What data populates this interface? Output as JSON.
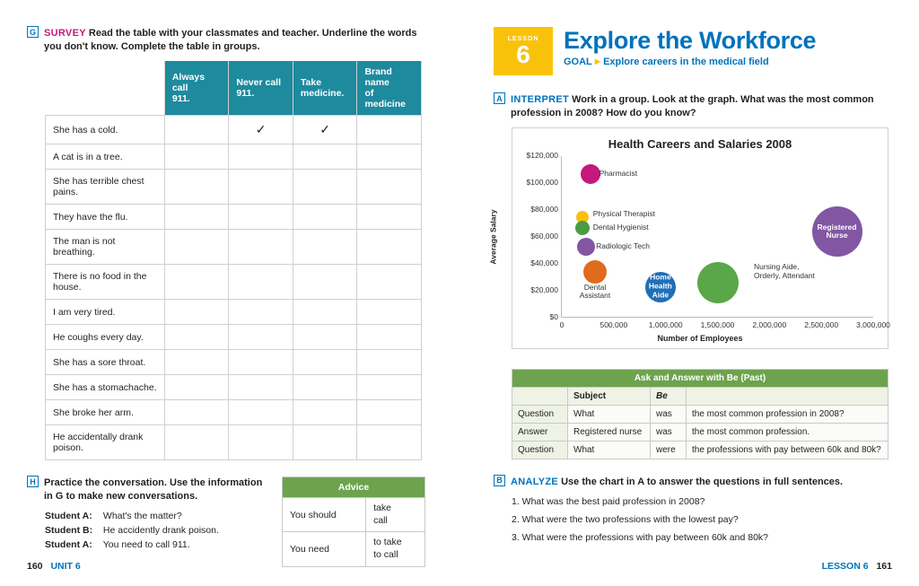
{
  "left": {
    "G": {
      "lead": "SURVEY",
      "text1": "Read the table with your classmates and teacher. Underline the words",
      "text2": "you don't know. Complete the table in groups.",
      "cols": [
        "",
        "Always call 911.",
        "Never call 911.",
        "Take medicine.",
        "Brand name of medicine"
      ],
      "rows": [
        {
          "t": "She has a cold.",
          "v": [
            "",
            "✓",
            "✓",
            ""
          ]
        },
        {
          "t": "A cat is in a tree.",
          "v": [
            "",
            "",
            "",
            ""
          ]
        },
        {
          "t": "She has terrible chest pains.",
          "v": [
            "",
            "",
            "",
            ""
          ]
        },
        {
          "t": "They have the flu.",
          "v": [
            "",
            "",
            "",
            ""
          ]
        },
        {
          "t": "The man is not breathing.",
          "v": [
            "",
            "",
            "",
            ""
          ]
        },
        {
          "t": "There is no food in the house.",
          "v": [
            "",
            "",
            "",
            ""
          ]
        },
        {
          "t": "I am very tired.",
          "v": [
            "",
            "",
            "",
            ""
          ]
        },
        {
          "t": "He coughs every day.",
          "v": [
            "",
            "",
            "",
            ""
          ]
        },
        {
          "t": "She has a sore throat.",
          "v": [
            "",
            "",
            "",
            ""
          ]
        },
        {
          "t": "She has a stomachache.",
          "v": [
            "",
            "",
            "",
            ""
          ]
        },
        {
          "t": "She broke her arm.",
          "v": [
            "",
            "",
            "",
            ""
          ]
        },
        {
          "t": "He accidentally drank poison.",
          "v": [
            "",
            "",
            "",
            ""
          ]
        }
      ]
    },
    "H": {
      "text1": "Practice the conversation. Use the information",
      "text2": "in G to make new conversations.",
      "conv": [
        {
          "who": "Student A:",
          "line": "What's the matter?"
        },
        {
          "who": "Student B:",
          "line": "He accidently drank poison."
        },
        {
          "who": "Student A:",
          "line": "You need to call 911."
        }
      ],
      "advice": {
        "head": "Advice",
        "r1a": "You should",
        "r1b": "take\ncall",
        "r2a": "You need",
        "r2b": "to take\nto call"
      }
    },
    "footer": {
      "page": "160",
      "unit": "UNIT 6"
    }
  },
  "right": {
    "lesson": {
      "label": "LESSON",
      "num": "6",
      "title": "Explore the Workforce",
      "goalLead": "GOAL",
      "goal": "Explore careers in the medical field"
    },
    "A": {
      "lead": "INTERPRET",
      "text1": "Work in a group. Look at the graph. What was the most common",
      "text2": "profession in 2008? How do you know?"
    },
    "chart": {
      "title": "Health Careers and Salaries 2008",
      "ylabel": "Average Salary",
      "xlabel": "Number of Employees",
      "xlim": [
        0,
        3000000
      ],
      "ylim": [
        0,
        120000
      ],
      "yticks": [
        0,
        20000,
        40000,
        60000,
        80000,
        100000,
        120000
      ],
      "ytick_labels": [
        "$0",
        "$20,000",
        "$40,000",
        "$60,000",
        "$80,000",
        "$100,000",
        "$120,000"
      ],
      "xticks": [
        0,
        500000,
        1000000,
        1500000,
        2000000,
        2500000,
        3000000
      ],
      "xtick_labels": [
        "0",
        "500,000",
        "1,000,000",
        "1,500,000",
        "2,000,000",
        "2,500,000",
        "3,000,000"
      ],
      "bubbles": [
        {
          "name": "Pharmacist",
          "x": 280000,
          "y": 106000,
          "r": 11,
          "color": "#c4187c",
          "lx": 360000,
          "ly": 106000
        },
        {
          "name": "Physical Therapist",
          "x": 200000,
          "y": 74000,
          "r": 7,
          "color": "#f9c20a",
          "lx": 300000,
          "ly": 76000
        },
        {
          "name": "Dental Hygienist",
          "x": 200000,
          "y": 66000,
          "r": 8,
          "color": "#4a9b46",
          "lx": 300000,
          "ly": 66000
        },
        {
          "name": "Radiologic Tech",
          "x": 230000,
          "y": 52000,
          "r": 10,
          "color": "#8256a3",
          "lx": 330000,
          "ly": 52000
        },
        {
          "name": "Dental Assistant",
          "x": 320000,
          "y": 33000,
          "r": 13,
          "color": "#e06a1e",
          "lx": 320000,
          "ly": 15000,
          "align": "center",
          "text": "Dental\nAssistant"
        },
        {
          "name": "Home Health Aide",
          "x": 950000,
          "y": 22000,
          "r": 17,
          "color": "#1e6fb7",
          "inside": true,
          "text": "Home\nHealth\nAide"
        },
        {
          "name": "Nursing Aide",
          "x": 1500000,
          "y": 25000,
          "r": 23,
          "color": "#5aa749",
          "lx": 1850000,
          "ly": 30000,
          "text": "Nursing Aide,\nOrderly, Attendant"
        },
        {
          "name": "Registered Nurse",
          "x": 2650000,
          "y": 63000,
          "r": 28,
          "color": "#8256a3",
          "inside": true,
          "text": "Registered\nNurse"
        }
      ]
    },
    "gram": {
      "title": "Ask and Answer with Be (Past)",
      "subcols": [
        "",
        "Subject",
        "Be",
        ""
      ],
      "rows": [
        [
          "Question",
          "What",
          "was",
          "the most common profession in 2008?"
        ],
        [
          "Answer",
          "Registered nurse",
          "was",
          "the most common profession."
        ],
        [
          "Question",
          "What",
          "were",
          "the professions with pay between 60k and 80k?"
        ]
      ]
    },
    "B": {
      "lead": "ANALYZE",
      "text": "Use the chart in A to answer the questions in full sentences.",
      "q": [
        "1. What was the best paid profession in 2008?",
        "2. What were the two professions with the lowest pay?",
        "3. What were the professions with pay between 60k and 80k?"
      ]
    },
    "footer": {
      "lesson": "LESSON 6",
      "page": "161"
    }
  }
}
